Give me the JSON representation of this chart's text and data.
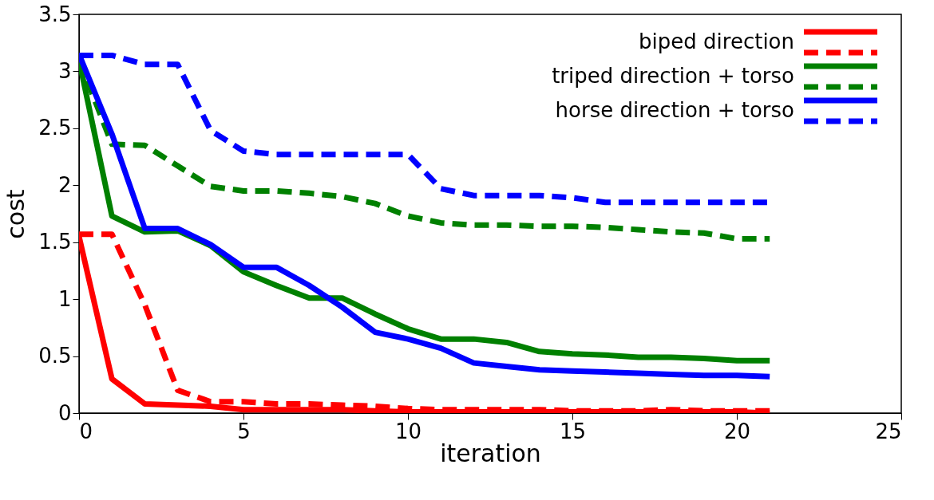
{
  "chart_data": {
    "type": "line",
    "xlabel": "iteration",
    "ylabel": "cost",
    "xlim": [
      0,
      25
    ],
    "xticks": [
      0,
      5,
      10,
      15,
      20,
      25
    ],
    "ylim": [
      0,
      3.5
    ],
    "yticks": [
      {
        "value": 0,
        "label": "0"
      },
      0.5,
      {
        "value": 1,
        "label": "1"
      },
      1.5,
      {
        "value": 2,
        "label": "2"
      },
      2.5,
      {
        "value": 3,
        "label": "3"
      },
      3.5
    ],
    "grid": false,
    "legend": "top right",
    "marker": "none",
    "x": [
      0,
      1,
      2,
      3,
      4,
      5,
      6,
      7,
      8,
      9,
      10,
      11,
      12,
      13,
      14,
      15,
      16,
      17,
      18,
      19,
      20,
      21
    ],
    "series": [
      {
        "name": "biped direction",
        "color": "#ff0000",
        "line_style": "solid",
        "values": [
          1.55,
          0.3,
          0.08,
          0.07,
          0.06,
          0.03,
          0.03,
          0.03,
          0.03,
          0.02,
          0.01,
          0.01,
          0.01,
          0.01,
          0.01,
          0.01,
          0.01,
          0.01,
          0.01,
          0.01,
          0.01,
          0.0
        ]
      },
      {
        "color": "#ff0000",
        "line_style": "dashed",
        "values": [
          1.57,
          1.57,
          0.95,
          0.2,
          0.1,
          0.1,
          0.08,
          0.08,
          0.07,
          0.06,
          0.04,
          0.03,
          0.03,
          0.03,
          0.03,
          0.02,
          0.02,
          0.02,
          0.03,
          0.02,
          0.02,
          0.02
        ]
      },
      {
        "name": "triped direction + torso",
        "color": "#008000",
        "line_style": "solid",
        "values": [
          3.1,
          1.73,
          1.59,
          1.6,
          1.47,
          1.24,
          1.12,
          1.01,
          1.01,
          0.87,
          0.74,
          0.65,
          0.65,
          0.62,
          0.54,
          0.52,
          0.51,
          0.49,
          0.49,
          0.48,
          0.46,
          0.46
        ]
      },
      {
        "color": "#008000",
        "line_style": "dashed",
        "values": [
          3.1,
          2.36,
          2.35,
          2.17,
          1.99,
          1.95,
          1.95,
          1.93,
          1.9,
          1.84,
          1.73,
          1.67,
          1.65,
          1.65,
          1.64,
          1.64,
          1.63,
          1.61,
          1.59,
          1.58,
          1.53,
          1.53
        ]
      },
      {
        "name": "horse direction + torso",
        "color": "#0000ff",
        "line_style": "solid",
        "values": [
          3.15,
          2.45,
          1.62,
          1.62,
          1.48,
          1.28,
          1.28,
          1.12,
          0.93,
          0.71,
          0.65,
          0.57,
          0.44,
          0.41,
          0.38,
          0.37,
          0.36,
          0.35,
          0.34,
          0.33,
          0.33,
          0.32
        ]
      },
      {
        "color": "#0000ff",
        "line_style": "dashed",
        "values": [
          3.14,
          3.14,
          3.06,
          3.06,
          2.48,
          2.3,
          2.27,
          2.27,
          2.27,
          2.27,
          2.27,
          1.97,
          1.91,
          1.91,
          1.91,
          1.89,
          1.85,
          1.85,
          1.85,
          1.85,
          1.85,
          1.85
        ]
      }
    ]
  }
}
